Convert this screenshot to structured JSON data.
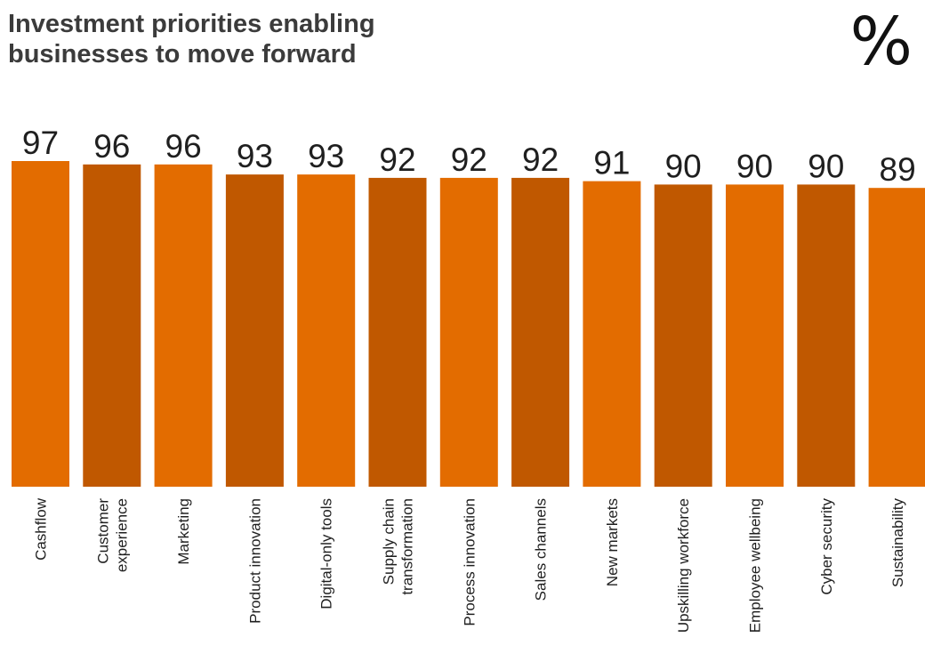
{
  "header": {
    "title_lines": [
      "Investment priorities enabling",
      "businesses to move forward"
    ],
    "unit": "%"
  },
  "colors": {
    "bar_light": "#e36c00",
    "bar_dark": "#c05800",
    "text": "#1f1f1f",
    "title": "#3b3b3b"
  },
  "chart_data": {
    "type": "bar",
    "title": "Investment priorities enabling businesses to move forward",
    "unit": "%",
    "xlabel": "",
    "ylabel": "",
    "categories": [
      [
        "Cashflow"
      ],
      [
        "Customer",
        "experience"
      ],
      [
        "Marketing"
      ],
      [
        "Product innovation"
      ],
      [
        "Digital-only tools"
      ],
      [
        "Supply chain",
        "transformation"
      ],
      [
        "Process innovation"
      ],
      [
        "Sales channels"
      ],
      [
        "New markets"
      ],
      [
        "Upskilling workforce"
      ],
      [
        "Employee wellbeing"
      ],
      [
        "Cyber security"
      ],
      [
        "Sustainability"
      ]
    ],
    "values": [
      97,
      96,
      96,
      93,
      93,
      92,
      92,
      92,
      91,
      90,
      90,
      90,
      89
    ],
    "bar_color_pattern": [
      "light",
      "dark"
    ],
    "data_labels": true,
    "grid": false,
    "legend": "none"
  }
}
